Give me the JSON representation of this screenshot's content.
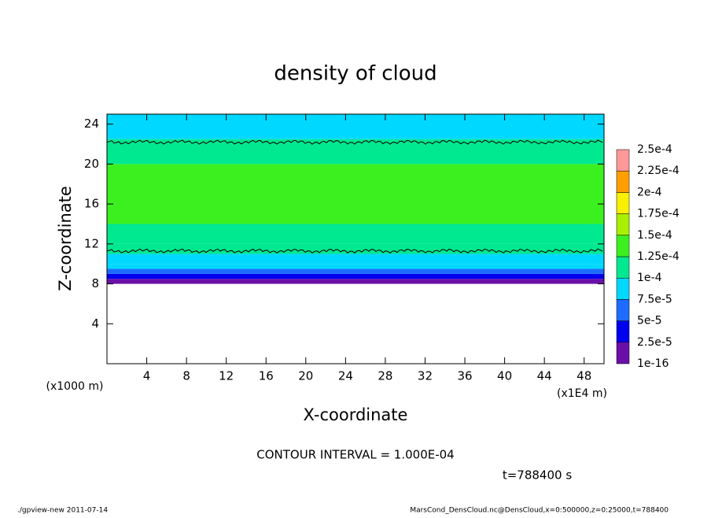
{
  "chart_data": {
    "type": "heatmap",
    "title": "density of cloud",
    "x_label": "X-coordinate",
    "y_label": "Z-coordinate",
    "x_unit_label": "(x1E4 m)",
    "y_unit_label": "(x1000 m)",
    "xlim": [
      0,
      50
    ],
    "xticks": [
      4,
      8,
      12,
      16,
      20,
      24,
      28,
      32,
      36,
      40,
      44,
      48
    ],
    "ylim": [
      0,
      25
    ],
    "yticks": [
      4,
      8,
      12,
      16,
      20,
      24
    ],
    "ybins": [
      8,
      8.5,
      9,
      9.5,
      10,
      11,
      12,
      14,
      20,
      22.5,
      25
    ],
    "values": [
      1e-05,
      3e-05,
      6e-05,
      8e-05,
      9e-05,
      0.00011,
      0.00012,
      0.00013,
      0.00011,
      9e-05
    ],
    "contour_heights": [
      11.3,
      22.2
    ],
    "colorbar_ticks": [
      {
        "value": 1e-16,
        "label": "1e-16"
      },
      {
        "value": 2.5e-05,
        "label": "2.5e-5"
      },
      {
        "value": 5e-05,
        "label": "5e-5"
      },
      {
        "value": 7.5e-05,
        "label": "7.5e-5"
      },
      {
        "value": 0.0001,
        "label": "1e-4"
      },
      {
        "value": 0.000125,
        "label": "1.25e-4"
      },
      {
        "value": 0.00015,
        "label": "1.5e-4"
      },
      {
        "value": 0.000175,
        "label": "1.75e-4"
      },
      {
        "value": 0.0002,
        "label": "2e-4"
      },
      {
        "value": 0.000225,
        "label": "2.25e-4"
      },
      {
        "value": 0.00025,
        "label": "2.5e-4"
      }
    ],
    "colorbar_colors": [
      "#6a10a8",
      "#0000f0",
      "#1e6cff",
      "#00d8ff",
      "#00e890",
      "#3cf020",
      "#a8f000",
      "#f8f000",
      "#ffa000",
      "#ff9898"
    ],
    "contour_interval": "CONTOUR INTERVAL = 1.000E-04",
    "time_label": "t=788400 s",
    "footer_left": "./gpview-new  2011-07-14",
    "footer_right": "MarsCond_DensCloud.nc@DensCloud,x=0:500000,z=0:25000,t=788400"
  }
}
